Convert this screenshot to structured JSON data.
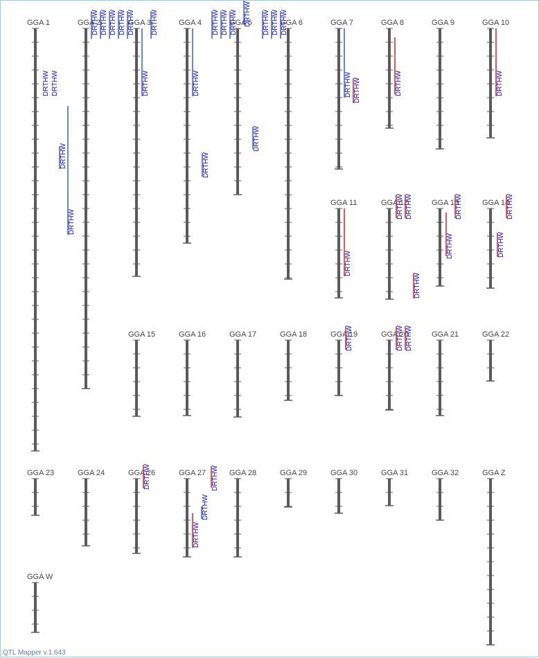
{
  "app": {
    "footer": "QTL Mapper v.1.643"
  },
  "colors": {
    "chrom": "#5a5a5a",
    "label": "#444444",
    "qtl_text": "#1010d0",
    "qtl_blue": "#3a5fc0",
    "qtl_red": "#e02020"
  },
  "chromosomes": [
    {
      "id": "chr-gga1",
      "name": "GGA 1"
    },
    {
      "id": "chr-gga2",
      "name": "GGA 2"
    },
    {
      "id": "chr-gga3",
      "name": "GGA 3"
    },
    {
      "id": "chr-gga4",
      "name": "GGA 4"
    },
    {
      "id": "chr-gga5",
      "name": "GGA 5"
    },
    {
      "id": "chr-gga6",
      "name": "GGA 6"
    },
    {
      "id": "chr-gga7",
      "name": "GGA 7"
    },
    {
      "id": "chr-gga8",
      "name": "GGA 8"
    },
    {
      "id": "chr-gga9",
      "name": "GGA 9"
    },
    {
      "id": "chr-gga10",
      "name": "GGA 10"
    },
    {
      "id": "chr-gga11",
      "name": "GGA 11"
    },
    {
      "id": "chr-gga12",
      "name": "GGA 12"
    },
    {
      "id": "chr-gga13",
      "name": "GGA 13"
    },
    {
      "id": "chr-gga14",
      "name": "GGA 14"
    },
    {
      "id": "chr-gga15",
      "name": "GGA 15"
    },
    {
      "id": "chr-gga16",
      "name": "GGA 16"
    },
    {
      "id": "chr-gga17",
      "name": "GGA 17"
    },
    {
      "id": "chr-gga18",
      "name": "GGA 18"
    },
    {
      "id": "chr-gga19",
      "name": "GGA 19"
    },
    {
      "id": "chr-gga20",
      "name": "GGA 20"
    },
    {
      "id": "chr-gga21",
      "name": "GGA 21"
    },
    {
      "id": "chr-gga22",
      "name": "GGA 22"
    },
    {
      "id": "chr-gga23",
      "name": "GGA 23"
    },
    {
      "id": "chr-gga24",
      "name": "GGA 24"
    },
    {
      "id": "chr-gga26",
      "name": "GGA 26"
    },
    {
      "id": "chr-gga27",
      "name": "GGA 27"
    },
    {
      "id": "chr-gga28",
      "name": "GGA 28"
    },
    {
      "id": "chr-gga29",
      "name": "GGA 29"
    },
    {
      "id": "chr-gga30",
      "name": "GGA 30"
    },
    {
      "id": "chr-gga31",
      "name": "GGA 31"
    },
    {
      "id": "chr-gga32",
      "name": "GGA 32"
    },
    {
      "id": "chr-ggaz",
      "name": "GGA Z"
    },
    {
      "id": "chr-ggaw",
      "name": "GGA W"
    }
  ],
  "qtl_label": "DRTHW"
}
